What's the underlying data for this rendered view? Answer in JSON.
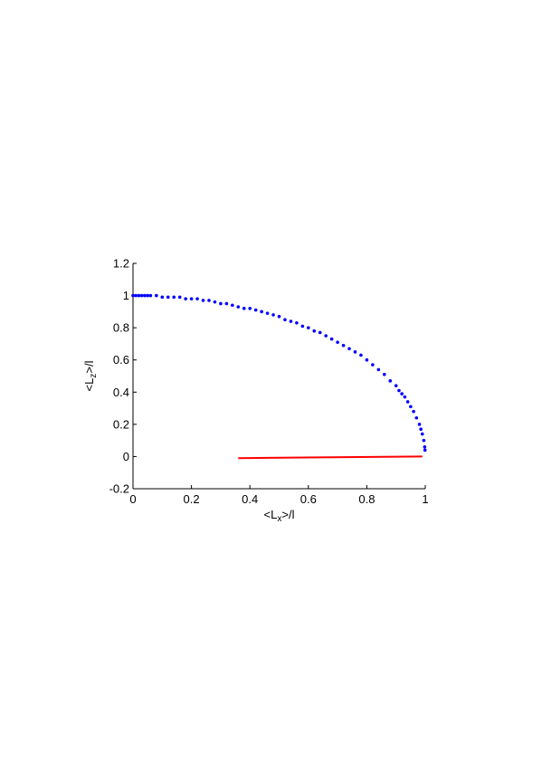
{
  "chart_data": {
    "type": "scatter",
    "xlabel_parts": [
      "<L",
      "x",
      ">/l"
    ],
    "ylabel_parts": [
      "<L",
      "z",
      ">/l"
    ],
    "xlim": [
      0,
      1
    ],
    "ylim": [
      -0.2,
      1.2
    ],
    "xticks": [
      0,
      0.2,
      0.4,
      0.6,
      0.8,
      1
    ],
    "yticks": [
      -0.2,
      0,
      0.2,
      0.4,
      0.6,
      0.8,
      1,
      1.2
    ],
    "series": [
      {
        "color": "#0000ff",
        "marker": "dot",
        "x": [
          0,
          0.01,
          0.02,
          0.03,
          0.04,
          0.05,
          0.06,
          0.08,
          0.1,
          0.12,
          0.14,
          0.16,
          0.18,
          0.2,
          0.22,
          0.24,
          0.26,
          0.28,
          0.3,
          0.32,
          0.34,
          0.36,
          0.38,
          0.4,
          0.42,
          0.44,
          0.46,
          0.48,
          0.5,
          0.52,
          0.54,
          0.56,
          0.58,
          0.6,
          0.62,
          0.64,
          0.66,
          0.68,
          0.7,
          0.72,
          0.74,
          0.76,
          0.78,
          0.8,
          0.82,
          0.84,
          0.86,
          0.88,
          0.9,
          0.91,
          0.92,
          0.93,
          0.94,
          0.95,
          0.96,
          0.97,
          0.98,
          0.985,
          0.99,
          0.995,
          0.998,
          0.999
        ],
        "values": [
          1,
          1,
          1,
          1,
          1,
          1,
          1,
          1,
          0.99,
          0.99,
          0.99,
          0.99,
          0.98,
          0.98,
          0.98,
          0.97,
          0.97,
          0.96,
          0.95,
          0.95,
          0.94,
          0.93,
          0.92,
          0.92,
          0.91,
          0.9,
          0.89,
          0.88,
          0.87,
          0.85,
          0.84,
          0.83,
          0.81,
          0.8,
          0.78,
          0.77,
          0.75,
          0.73,
          0.71,
          0.69,
          0.67,
          0.65,
          0.63,
          0.6,
          0.57,
          0.54,
          0.51,
          0.47,
          0.44,
          0.41,
          0.39,
          0.37,
          0.34,
          0.31,
          0.28,
          0.24,
          0.2,
          0.17,
          0.14,
          0.1,
          0.06,
          0.04
        ]
      },
      {
        "color": "#ff0000",
        "marker": "line",
        "x": [
          0.36,
          0.46,
          0.63,
          0.86,
          0.99
        ],
        "values": [
          -0.01,
          -0.008,
          -0.005,
          -0.002,
          0
        ]
      }
    ]
  }
}
